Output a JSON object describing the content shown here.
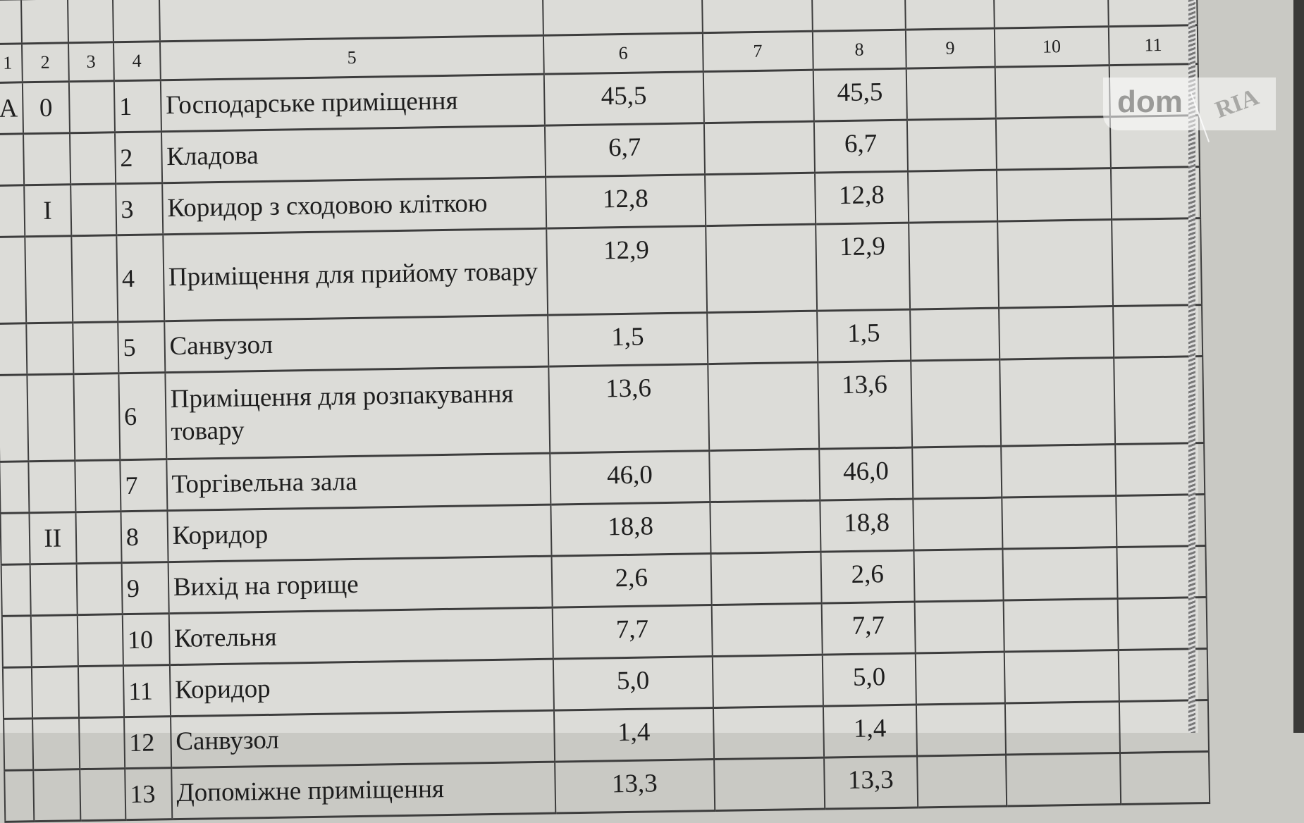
{
  "table": {
    "header_numbers": [
      "1",
      "2",
      "3",
      "4",
      "5",
      "6",
      "7",
      "8",
      "9",
      "10",
      "11"
    ],
    "rows": [
      {
        "c1": "А",
        "c2": "0",
        "c4": "1",
        "name": "Господарське приміщення",
        "c6": "45,5",
        "c7": "",
        "c8": "45,5"
      },
      {
        "c1": "",
        "c2": "",
        "c4": "2",
        "name": "Кладова",
        "c6": "6,7",
        "c7": "",
        "c8": "6,7"
      },
      {
        "c1": "",
        "c2": "I",
        "c4": "3",
        "name": "Коридор з сходовою кліткою",
        "c6": "12,8",
        "c7": "",
        "c8": "12,8"
      },
      {
        "c1": "",
        "c2": "",
        "c4": "4",
        "name": "Приміщення для прийому товару",
        "c6": "12,9",
        "c7": "",
        "c8": "12,9"
      },
      {
        "c1": "",
        "c2": "",
        "c4": "5",
        "name": "Санвузол",
        "c6": "1,5",
        "c7": "",
        "c8": "1,5"
      },
      {
        "c1": "",
        "c2": "",
        "c4": "6",
        "name": "Приміщення для розпакування товару",
        "c6": "13,6",
        "c7": "",
        "c8": "13,6"
      },
      {
        "c1": "",
        "c2": "",
        "c4": "7",
        "name": "Торгівельна зала",
        "c6": "46,0",
        "c7": "",
        "c8": "46,0"
      },
      {
        "c1": "",
        "c2": "II",
        "c4": "8",
        "name": "Коридор",
        "c6": "18,8",
        "c7": "",
        "c8": "18,8"
      },
      {
        "c1": "",
        "c2": "",
        "c4": "9",
        "name": "Вихід на горище",
        "c6": "2,6",
        "c7": "",
        "c8": "2,6"
      },
      {
        "c1": "",
        "c2": "",
        "c4": "10",
        "name": "Котельня",
        "c6": "7,7",
        "c7": "",
        "c8": "7,7"
      },
      {
        "c1": "",
        "c2": "",
        "c4": "11",
        "name": "Коридор",
        "c6": "5,0",
        "c7": "",
        "c8": "5,0"
      },
      {
        "c1": "",
        "c2": "",
        "c4": "12",
        "name": "Санвузол",
        "c6": "1,4",
        "c7": "",
        "c8": "1,4"
      },
      {
        "c1": "",
        "c2": "",
        "c4": "13",
        "name": "Допоміжне приміщення",
        "c6": "13,3",
        "c7": "",
        "c8": "13,3"
      }
    ]
  },
  "watermark": {
    "left": "dom",
    "right": "RIA"
  }
}
